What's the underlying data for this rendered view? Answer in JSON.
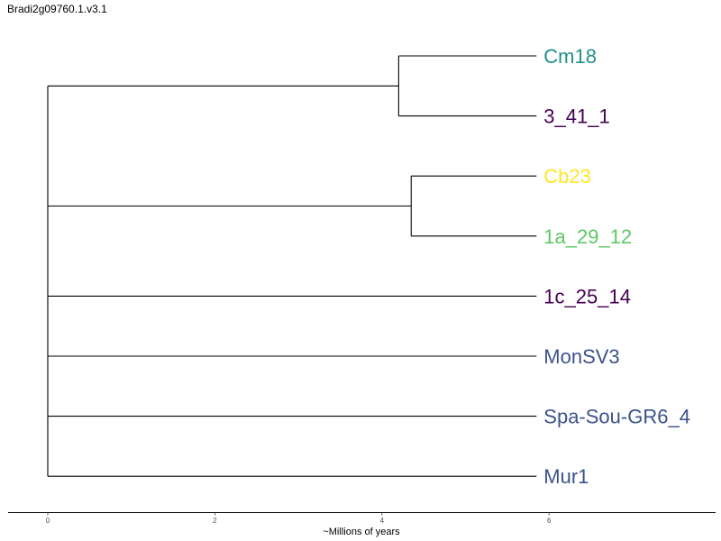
{
  "title": "Bradi2g09760.1.v3.1",
  "chart_data": {
    "type": "dendrogram",
    "xlabel": "~Millions of years",
    "xlim": [
      0,
      7.9
    ],
    "xticks": [
      0,
      2,
      4,
      6
    ],
    "tips": [
      {
        "label": "Cm18",
        "color": "#21908c"
      },
      {
        "label": "3_41_1",
        "color": "#440154"
      },
      {
        "label": "Cb23",
        "color": "#fde725"
      },
      {
        "label": "1a_29_12",
        "color": "#5dc863"
      },
      {
        "label": "1c_25_14",
        "color": "#440154"
      },
      {
        "label": "MonSV3",
        "color": "#3b528b"
      },
      {
        "label": "Spa-Sou-GR6_4",
        "color": "#3b528b"
      },
      {
        "label": "Mur1",
        "color": "#3b528b"
      }
    ],
    "tip_age": 5.85,
    "clades": [
      {
        "members": [
          "Cm18",
          "3_41_1"
        ],
        "node_x": 4.2
      },
      {
        "members": [
          "Cb23",
          "1a_29_12"
        ],
        "node_x": 4.35
      }
    ],
    "root_x": 0,
    "root_children": [
      "clade:Cm18,3_41_1",
      "clade:Cb23,1a_29_12",
      "1c_25_14",
      "MonSV3",
      "Spa-Sou-GR6_4",
      "Mur1"
    ]
  }
}
